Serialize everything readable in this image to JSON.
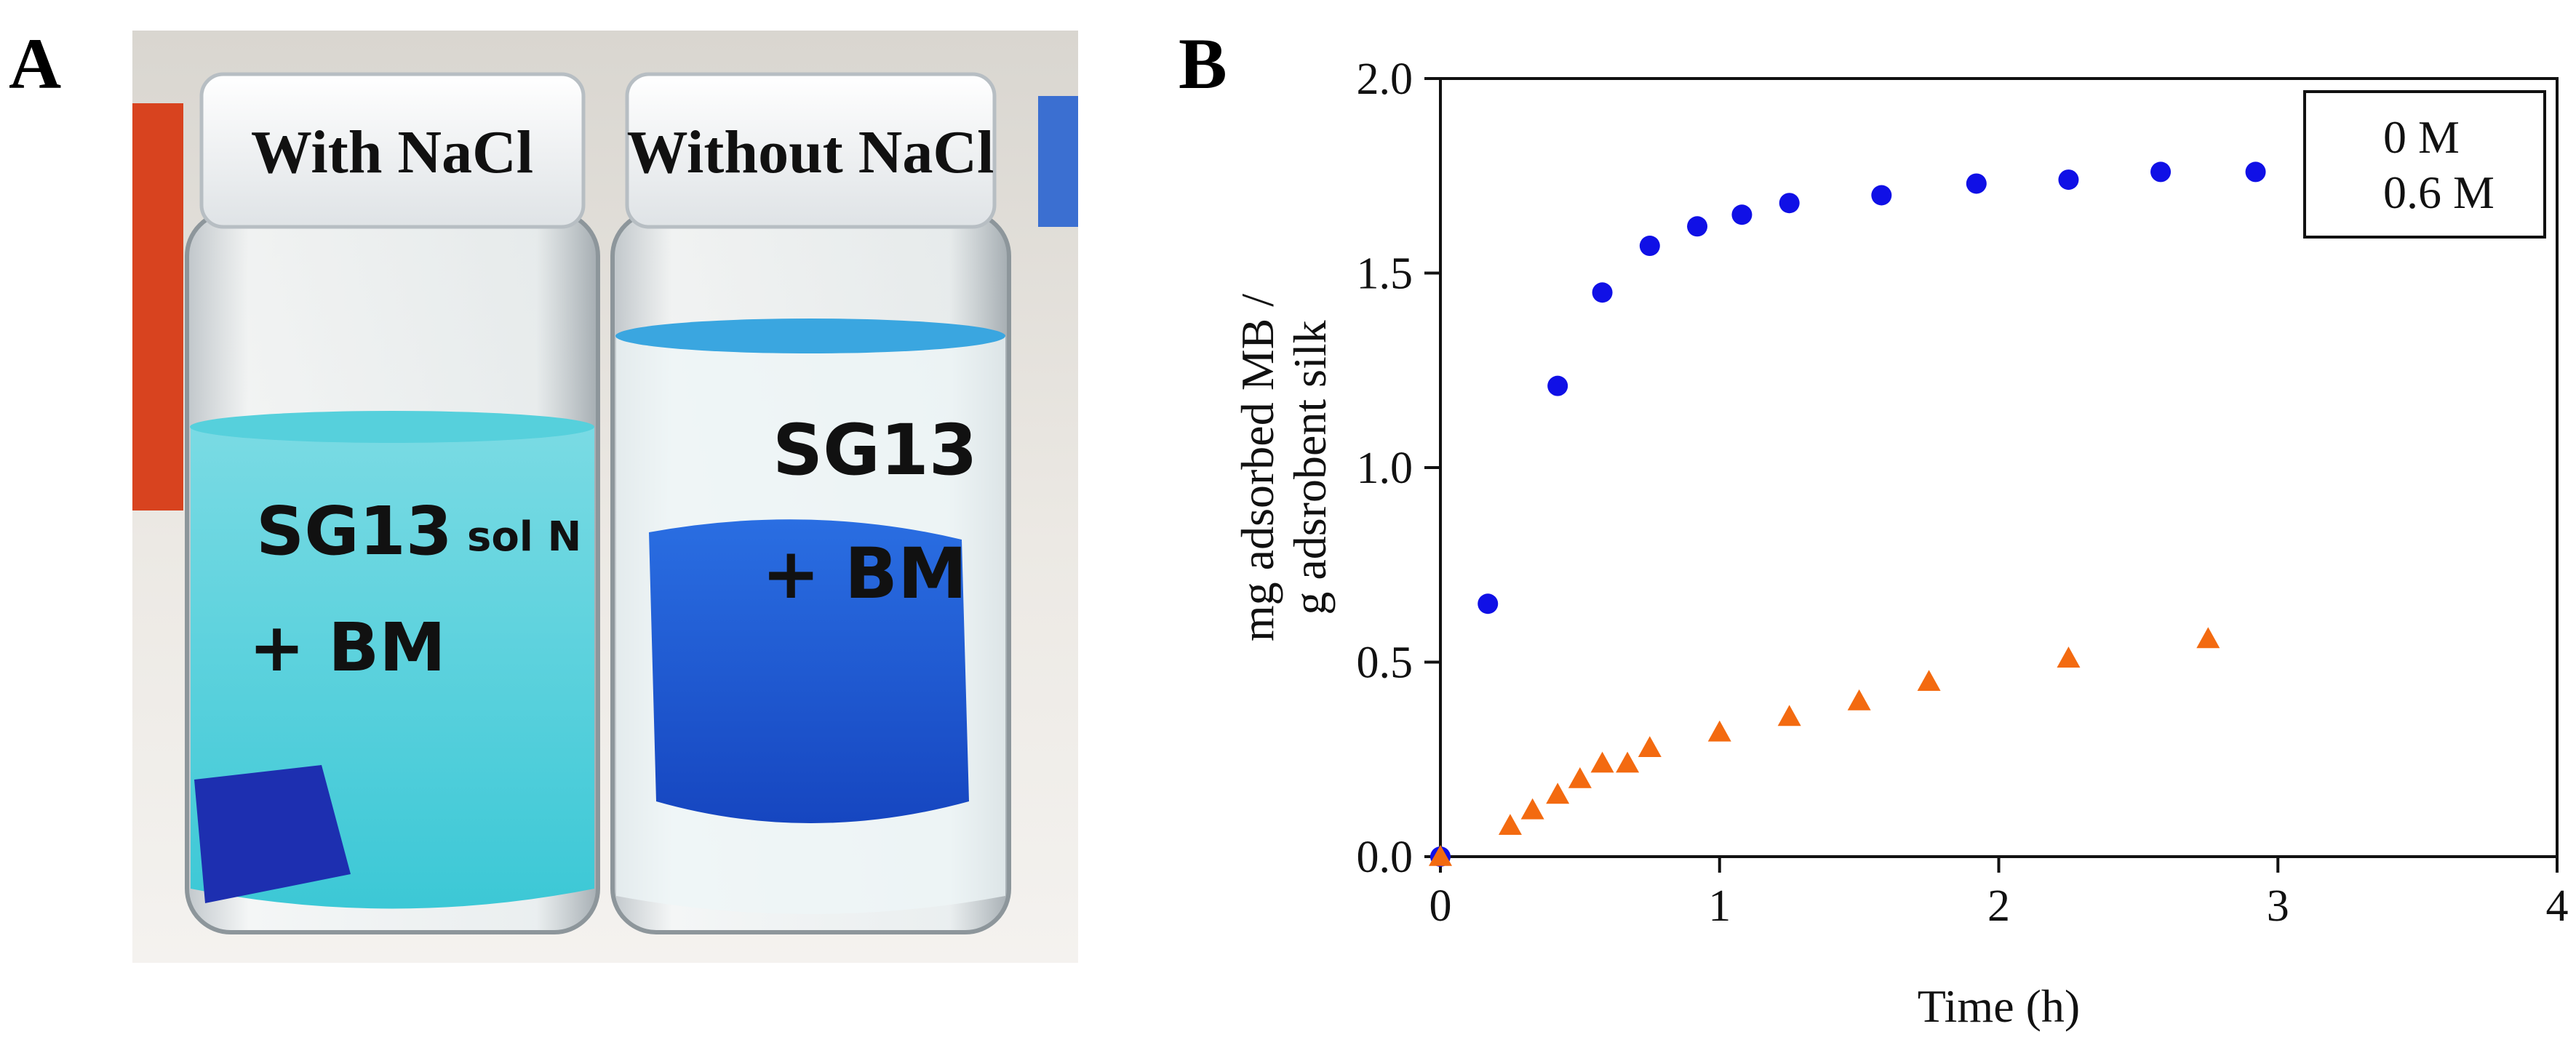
{
  "panels": {
    "a": {
      "label": "A"
    },
    "b": {
      "label": "B"
    }
  },
  "photo": {
    "left_jar_label": "With NaCl",
    "right_jar_label": "Without NaCl",
    "left_marker_line1": "SG13",
    "left_marker_side": "sol N",
    "left_marker_line2": "+ BM",
    "right_marker_line1": "SG13",
    "right_marker_line2": "+ BM"
  },
  "colors": {
    "series_0M": "#1010e6",
    "series_06M": "#f36a10",
    "solution_light": "#3cc8d6",
    "solution_dark": "#1c5fd8"
  },
  "chart_data": {
    "type": "scatter",
    "title": "",
    "xlabel": "Time (h)",
    "ylabel_line1": "mg adsorbed MB /",
    "ylabel_line2": "g adsrobent silk",
    "xlim": [
      0,
      4
    ],
    "ylim": [
      0,
      2.0
    ],
    "xticks": [
      0,
      1,
      2,
      3,
      4
    ],
    "yticks": [
      "0.0",
      "0.5",
      "1.0",
      "1.5",
      "2.0"
    ],
    "legend_position": "top-right",
    "series": [
      {
        "name": "0 M",
        "marker": "circle",
        "color": "#1010e6",
        "x": [
          0,
          0.17,
          0.42,
          0.58,
          0.75,
          0.92,
          1.08,
          1.25,
          1.58,
          1.92,
          2.25,
          2.58,
          2.92
        ],
        "y": [
          0.0,
          0.65,
          1.21,
          1.45,
          1.57,
          1.62,
          1.65,
          1.68,
          1.7,
          1.73,
          1.74,
          1.76,
          1.76
        ]
      },
      {
        "name": "0.6 M",
        "marker": "triangle",
        "color": "#f36a10",
        "x": [
          0,
          0.25,
          0.33,
          0.42,
          0.5,
          0.58,
          0.67,
          0.75,
          1.0,
          1.25,
          1.5,
          1.75,
          2.25,
          2.75
        ],
        "y": [
          0.0,
          0.08,
          0.12,
          0.16,
          0.2,
          0.24,
          0.24,
          0.28,
          0.32,
          0.36,
          0.4,
          0.45,
          0.51,
          0.56
        ]
      }
    ]
  }
}
